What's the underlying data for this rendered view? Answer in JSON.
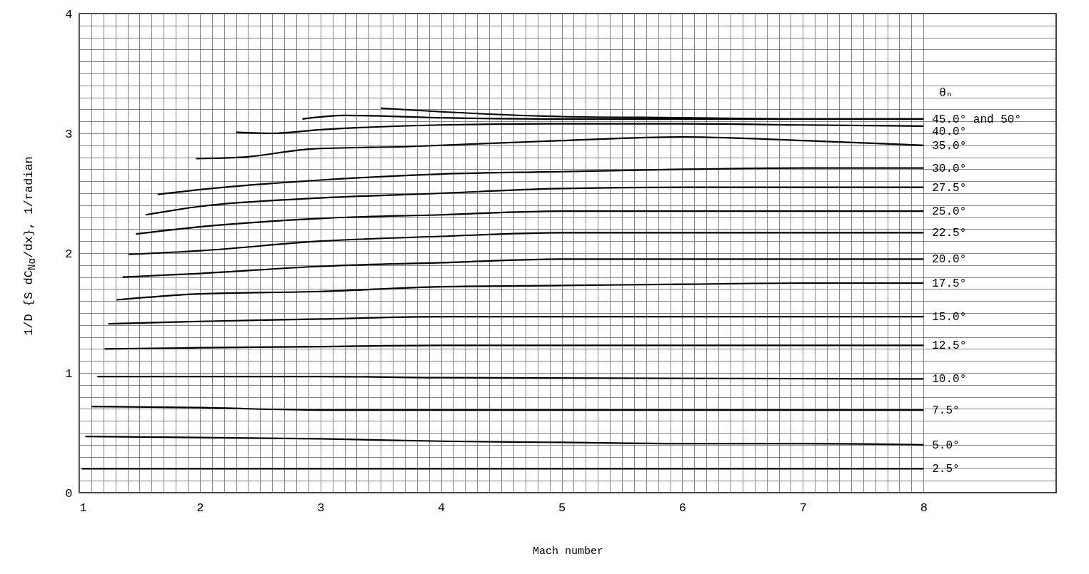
{
  "chart_data": {
    "type": "line",
    "xlabel": "Mach number",
    "ylabel": "1/D {S dC$_{Nα}$/dx}, 1/radian",
    "legend_title": "θₙ",
    "xlim": [
      1,
      9.1
    ],
    "ylim": [
      0,
      4
    ],
    "grid": true,
    "xticks": [
      1,
      {
        "value": 1.1,
        "label": null
      },
      {
        "value": 1.2,
        "label": null
      },
      {
        "value": 1.3,
        "label": null
      },
      {
        "value": 1.4,
        "label": null
      },
      {
        "value": 1.5,
        "label": null
      },
      {
        "value": 1.6,
        "label": null
      },
      {
        "value": 1.7,
        "label": null
      },
      {
        "value": 1.8,
        "label": null
      },
      {
        "value": 1.9,
        "label": null
      },
      2,
      {
        "value": 2.1,
        "label": null
      },
      {
        "value": 2.2,
        "label": null
      },
      {
        "value": 2.3,
        "label": null
      },
      {
        "value": 2.4,
        "label": null
      },
      {
        "value": 2.5,
        "label": null
      },
      {
        "value": 2.6,
        "label": null
      },
      {
        "value": 2.7,
        "label": null
      },
      {
        "value": 2.8,
        "label": null
      },
      {
        "value": 2.9,
        "label": null
      },
      3,
      {
        "value": 3.1,
        "label": null
      },
      {
        "value": 3.2,
        "label": null
      },
      {
        "value": 3.3,
        "label": null
      },
      {
        "value": 3.4,
        "label": null
      },
      {
        "value": 3.5,
        "label": null
      },
      {
        "value": 3.6,
        "label": null
      },
      {
        "value": 3.7,
        "label": null
      },
      {
        "value": 3.8,
        "label": null
      },
      {
        "value": 3.9,
        "label": null
      },
      4,
      {
        "value": 4.1,
        "label": null
      },
      {
        "value": 4.2,
        "label": null
      },
      {
        "value": 4.3,
        "label": null
      },
      {
        "value": 4.4,
        "label": null
      },
      {
        "value": 4.5,
        "label": null
      },
      {
        "value": 4.6,
        "label": null
      },
      {
        "value": 4.7,
        "label": null
      },
      {
        "value": 4.8,
        "label": null
      },
      {
        "value": 4.9,
        "label": null
      },
      5,
      {
        "value": 5.1,
        "label": null
      },
      {
        "value": 5.2,
        "label": null
      },
      {
        "value": 5.3,
        "label": null
      },
      {
        "value": 5.4,
        "label": null
      },
      {
        "value": 5.5,
        "label": null
      },
      {
        "value": 5.6,
        "label": null
      },
      {
        "value": 5.7,
        "label": null
      },
      {
        "value": 5.8,
        "label": null
      },
      {
        "value": 5.9,
        "label": null
      },
      6,
      {
        "value": 6.1,
        "label": null
      },
      {
        "value": 6.2,
        "label": null
      },
      {
        "value": 6.3,
        "label": null
      },
      {
        "value": 6.4,
        "label": null
      },
      {
        "value": 6.5,
        "label": null
      },
      {
        "value": 6.6,
        "label": null
      },
      {
        "value": 6.7,
        "label": null
      },
      {
        "value": 6.8,
        "label": null
      },
      {
        "value": 6.9,
        "label": null
      },
      7,
      {
        "value": 7.1,
        "label": null
      },
      {
        "value": 7.2,
        "label": null
      },
      {
        "value": 7.3,
        "label": null
      },
      {
        "value": 7.4,
        "label": null
      },
      {
        "value": 7.5,
        "label": null
      },
      {
        "value": 7.6,
        "label": null
      },
      {
        "value": 7.7,
        "label": null
      },
      {
        "value": 7.8,
        "label": null
      },
      {
        "value": 7.9,
        "label": null
      },
      8
    ],
    "yticks": [
      0,
      {
        "value": 0.1,
        "label": null
      },
      {
        "value": 0.2,
        "label": null
      },
      {
        "value": 0.3,
        "label": null
      },
      {
        "value": 0.4,
        "label": null
      },
      {
        "value": 0.5,
        "label": null
      },
      {
        "value": 0.6,
        "label": null
      },
      {
        "value": 0.7,
        "label": null
      },
      {
        "value": 0.8,
        "label": null
      },
      {
        "value": 0.9,
        "label": null
      },
      1,
      {
        "value": 1.1,
        "label": null
      },
      {
        "value": 1.2,
        "label": null
      },
      {
        "value": 1.3,
        "label": null
      },
      {
        "value": 1.4,
        "label": null
      },
      {
        "value": 1.5,
        "label": null
      },
      {
        "value": 1.6,
        "label": null
      },
      {
        "value": 1.7,
        "label": null
      },
      {
        "value": 1.8,
        "label": null
      },
      {
        "value": 1.9,
        "label": null
      },
      2,
      {
        "value": 2.1,
        "label": null
      },
      {
        "value": 2.2,
        "label": null
      },
      {
        "value": 2.3,
        "label": null
      },
      {
        "value": 2.4,
        "label": null
      },
      {
        "value": 2.5,
        "label": null
      },
      {
        "value": 2.6,
        "label": null
      },
      {
        "value": 2.7,
        "label": null
      },
      {
        "value": 2.8,
        "label": null
      },
      {
        "value": 2.9,
        "label": null
      },
      3,
      {
        "value": 3.1,
        "label": null
      },
      {
        "value": 3.2,
        "label": null
      },
      {
        "value": 3.3,
        "label": null
      },
      {
        "value": 3.4,
        "label": null
      },
      {
        "value": 3.5,
        "label": null
      },
      {
        "value": 3.6,
        "label": null
      },
      {
        "value": 3.7,
        "label": null
      },
      {
        "value": 3.8,
        "label": null
      },
      {
        "value": 3.9,
        "label": null
      },
      4
    ],
    "series": [
      {
        "name": "45.0° and 50°",
        "color": "#000000",
        "x": [
          2.85,
          3.2,
          4,
          5,
          6,
          7,
          8
        ],
        "values": [
          3.12,
          3.15,
          3.13,
          3.12,
          3.12,
          3.12,
          3.12
        ]
      },
      {
        "color": "#000000",
        "x": [
          3.5,
          4,
          5,
          6,
          7,
          8
        ],
        "values": [
          3.21,
          3.18,
          3.14,
          3.13,
          3.12,
          3.12
        ]
      },
      {
        "name": "40.0°",
        "color": "#000000",
        "x": [
          2.3,
          2.6,
          3,
          4,
          5,
          6,
          7,
          8
        ],
        "values": [
          3.01,
          3.0,
          3.03,
          3.07,
          3.08,
          3.08,
          3.07,
          3.06
        ]
      },
      {
        "name": "35.0°",
        "color": "#000000",
        "x": [
          1.97,
          2.34,
          2.93,
          3.74,
          5,
          6,
          7,
          8
        ],
        "values": [
          2.79,
          2.8,
          2.87,
          2.89,
          2.94,
          2.97,
          2.94,
          2.9
        ]
      },
      {
        "name": "30.0°",
        "color": "#000000",
        "x": [
          1.65,
          2,
          3,
          4,
          5,
          6,
          7,
          8
        ],
        "values": [
          2.49,
          2.53,
          2.61,
          2.66,
          2.68,
          2.7,
          2.71,
          2.71
        ]
      },
      {
        "name": "27.5°",
        "color": "#000000",
        "x": [
          1.55,
          2,
          3,
          4,
          5,
          6,
          7,
          8
        ],
        "values": [
          2.32,
          2.39,
          2.46,
          2.5,
          2.54,
          2.55,
          2.55,
          2.55
        ]
      },
      {
        "name": "25.0°",
        "color": "#000000",
        "x": [
          1.47,
          2,
          3,
          4,
          5,
          6,
          7,
          8
        ],
        "values": [
          2.16,
          2.22,
          2.29,
          2.32,
          2.35,
          2.35,
          2.35,
          2.35
        ]
      },
      {
        "name": "22.5°",
        "color": "#000000",
        "x": [
          1.41,
          2,
          3,
          4,
          5,
          6,
          7,
          8
        ],
        "values": [
          1.99,
          2.02,
          2.1,
          2.14,
          2.17,
          2.17,
          2.17,
          2.17
        ]
      },
      {
        "name": "20.0°",
        "color": "#000000",
        "x": [
          1.36,
          2,
          3,
          4,
          5,
          6,
          7,
          8
        ],
        "values": [
          1.8,
          1.83,
          1.89,
          1.92,
          1.95,
          1.95,
          1.95,
          1.95
        ]
      },
      {
        "name": "17.5°",
        "color": "#000000",
        "x": [
          1.31,
          2,
          3,
          4,
          5,
          6,
          7,
          8
        ],
        "values": [
          1.61,
          1.66,
          1.68,
          1.72,
          1.73,
          1.74,
          1.75,
          1.75
        ]
      },
      {
        "name": "15.0°",
        "color": "#000000",
        "x": [
          1.24,
          2,
          3,
          4,
          5,
          6,
          7,
          8
        ],
        "values": [
          1.41,
          1.43,
          1.45,
          1.47,
          1.47,
          1.47,
          1.47,
          1.47
        ]
      },
      {
        "name": "12.5°",
        "color": "#000000",
        "x": [
          1.21,
          2,
          3,
          4,
          8
        ],
        "values": [
          1.2,
          1.21,
          1.22,
          1.23,
          1.23
        ]
      },
      {
        "name": "10.0°",
        "color": "#000000",
        "x": [
          1.15,
          3,
          4,
          8
        ],
        "values": [
          0.97,
          0.97,
          0.96,
          0.95
        ]
      },
      {
        "name": "7.5°",
        "color": "#000000",
        "x": [
          1.1,
          2,
          3,
          8
        ],
        "values": [
          0.72,
          0.71,
          0.69,
          0.69
        ]
      },
      {
        "name": "5.0°",
        "color": "#000000",
        "x": [
          1.05,
          3,
          4,
          5,
          6,
          7,
          8
        ],
        "values": [
          0.47,
          0.45,
          0.43,
          0.42,
          0.41,
          0.41,
          0.4
        ]
      },
      {
        "name": "2.5°",
        "color": "#000000",
        "x": [
          1.02,
          8
        ],
        "values": [
          0.2,
          0.2
        ]
      }
    ]
  }
}
